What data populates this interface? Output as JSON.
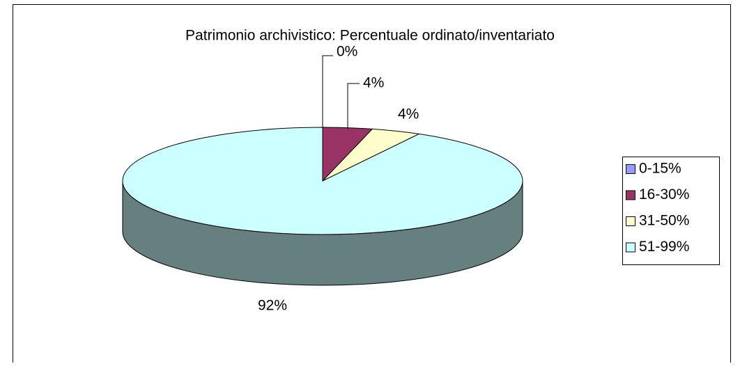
{
  "chart_data": {
    "type": "pie",
    "title": "Patrimonio archivistico: Percentuale ordinato/inventariato",
    "categories": [
      "0-15%",
      "16-30%",
      "31-50%",
      "51-99%"
    ],
    "values": [
      0,
      4,
      4,
      92
    ],
    "value_labels": [
      "0%",
      "4%",
      "4%",
      "92%"
    ],
    "colors": [
      "#9999ff",
      "#993366",
      "#ffffcc",
      "#ccffff"
    ],
    "legend": "right"
  }
}
